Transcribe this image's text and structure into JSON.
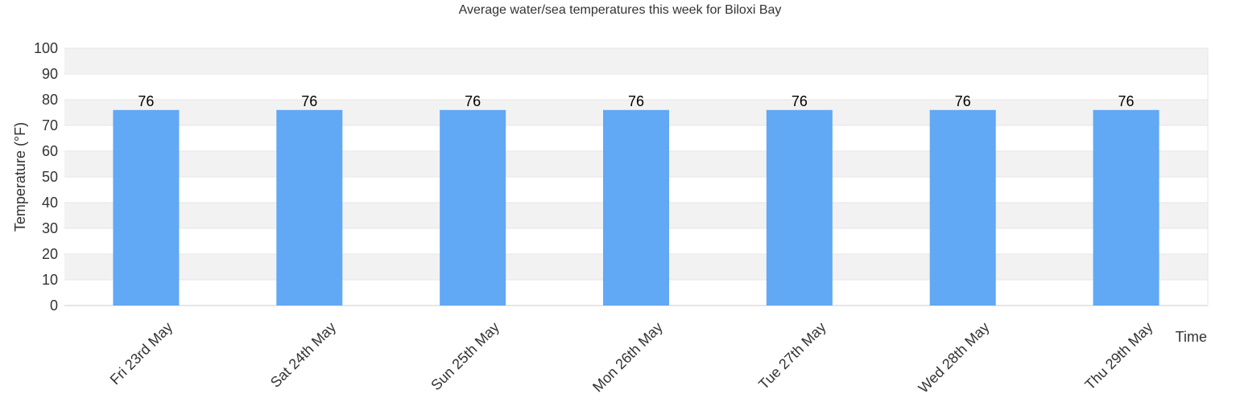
{
  "chart_data": {
    "type": "bar",
    "title": "Average water/sea temperatures this week for Biloxi Bay",
    "xlabel": "Time",
    "ylabel": "Temperature (°F)",
    "categories": [
      "Fri 23rd May",
      "Sat 24th May",
      "Sun 25th May",
      "Mon 26th May",
      "Tue 27th May",
      "Wed 28th May",
      "Thu 29th May"
    ],
    "series": [
      {
        "values": [
          76,
          76,
          76,
          76,
          76,
          76,
          76
        ]
      }
    ],
    "data_labels": [
      "76",
      "76",
      "76",
      "76",
      "76",
      "76",
      "76"
    ],
    "ylim": [
      0,
      100
    ],
    "y_ticks": [
      0,
      10,
      20,
      30,
      40,
      50,
      60,
      70,
      80,
      90,
      100
    ],
    "grid": true,
    "legend": "none",
    "colors": {
      "bar": "#61a8f5",
      "band_alt": "#f2f2f2",
      "grid_line": "#e6e6e6",
      "axis_line": "#cccccc",
      "text": "#333333"
    }
  }
}
